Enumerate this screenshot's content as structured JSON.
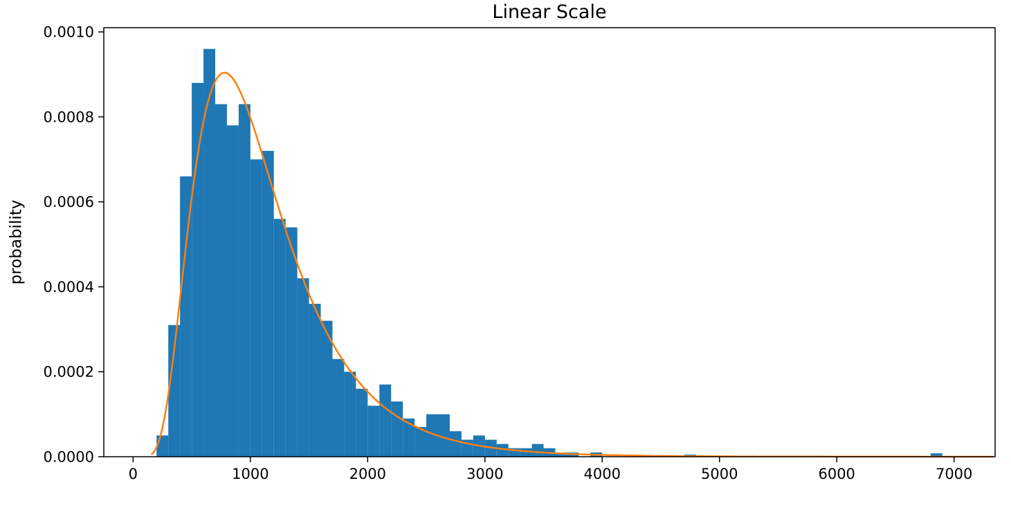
{
  "chart_data": {
    "type": "bar",
    "subtype": "histogram-with-fit-curve",
    "title": "Linear Scale",
    "xlabel": "",
    "ylabel": "probability",
    "xlim": [
      -250,
      7350
    ],
    "ylim": [
      0,
      0.00101
    ],
    "grid": false,
    "legend": "none",
    "x_ticks": [
      0,
      1000,
      2000,
      3000,
      4000,
      5000,
      6000,
      7000
    ],
    "y_ticks": [
      0,
      0.0002,
      0.0004,
      0.0006,
      0.0008,
      0.001
    ],
    "y_tick_labels": [
      "0.0000",
      "0.0002",
      "0.0004",
      "0.0006",
      "0.0008",
      "0.0010"
    ],
    "bar_color": "#1f77b4",
    "line_color": "#ff7f0e",
    "bins_start": 200,
    "bin_width": 100,
    "bar_heights": [
      5e-05,
      0.00031,
      0.00066,
      0.00088,
      0.00096,
      0.00083,
      0.00078,
      0.00083,
      0.0007,
      0.00072,
      0.00056,
      0.00054,
      0.00042,
      0.00036,
      0.00032,
      0.00023,
      0.0002,
      0.00016,
      0.00012,
      0.00017,
      0.00013,
      9e-05,
      7e-05,
      0.0001,
      0.0001,
      6e-05,
      4e-05,
      5e-05,
      4e-05,
      3e-05,
      2e-05,
      2e-05,
      3e-05,
      2e-05,
      1e-05,
      1e-05,
      0,
      1e-05,
      0,
      0,
      0,
      0,
      0,
      0,
      0,
      5e-06,
      0,
      0,
      0,
      0,
      0,
      0,
      0,
      0,
      0,
      0,
      0,
      0,
      0,
      0,
      0,
      0,
      0,
      0,
      0,
      0,
      8e-06
    ],
    "fit_curve": {
      "type": "lognormal",
      "mu": 6.9078,
      "sigma": 0.5,
      "peak_x": 780,
      "peak_y": 0.0009,
      "x_range": [
        160,
        7340
      ]
    }
  }
}
